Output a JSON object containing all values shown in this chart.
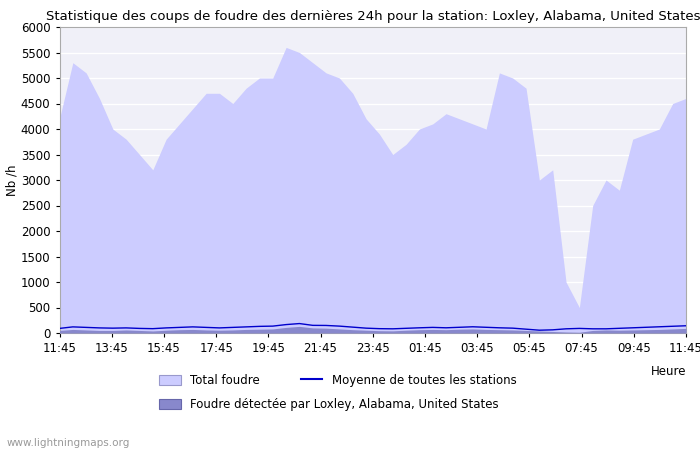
{
  "title": "Statistique des coups de foudre des dernières 24h pour la station: Loxley, Alabama, United States",
  "xlabel": "Heure",
  "ylabel": "Nb /h",
  "ylim": [
    0,
    6000
  ],
  "yticks": [
    0,
    500,
    1000,
    1500,
    2000,
    2500,
    3000,
    3500,
    4000,
    4500,
    5000,
    5500,
    6000
  ],
  "xtick_labels": [
    "11:45",
    "13:45",
    "15:45",
    "17:45",
    "19:45",
    "21:45",
    "23:45",
    "01:45",
    "03:45",
    "05:45",
    "07:45",
    "09:45",
    "11:45"
  ],
  "watermark": "www.lightningmaps.org",
  "total_foudre": [
    4200,
    5300,
    5100,
    4600,
    4000,
    3800,
    3500,
    3200,
    3800,
    4100,
    4400,
    4700,
    4700,
    4500,
    4800,
    5000,
    5000,
    5600,
    5500,
    5300,
    5100,
    5000,
    4700,
    4200,
    3900,
    3500,
    3700,
    4000,
    4100,
    4300,
    4200,
    4100,
    4000,
    5100,
    5000,
    4800,
    3000,
    3200,
    1000,
    500,
    2500,
    3000,
    2800,
    3800,
    3900,
    4000,
    4500,
    4600
  ],
  "local_foudre": [
    50,
    70,
    60,
    50,
    50,
    60,
    50,
    40,
    55,
    65,
    70,
    60,
    55,
    60,
    70,
    75,
    80,
    110,
    130,
    100,
    95,
    80,
    65,
    55,
    45,
    42,
    55,
    65,
    70,
    65,
    75,
    80,
    70,
    65,
    60,
    50,
    40,
    30,
    20,
    15,
    50,
    60,
    55,
    60,
    65,
    70,
    80,
    90
  ],
  "moyenne": [
    90,
    120,
    110,
    100,
    95,
    100,
    90,
    85,
    100,
    110,
    120,
    110,
    100,
    110,
    120,
    130,
    135,
    165,
    185,
    150,
    148,
    135,
    115,
    95,
    85,
    82,
    92,
    102,
    110,
    102,
    112,
    122,
    112,
    102,
    95,
    75,
    55,
    62,
    82,
    90,
    82,
    82,
    92,
    102,
    112,
    122,
    132,
    142
  ],
  "bg_color": "#ffffff",
  "plot_bg_color": "#f0f0f8",
  "fill_total_color": "#ccccff",
  "fill_local_color": "#8888cc",
  "line_mean_color": "#0000cc",
  "grid_color": "#ffffff",
  "title_fontsize": 9.5,
  "axis_fontsize": 8.5,
  "legend_fontsize": 8.5
}
